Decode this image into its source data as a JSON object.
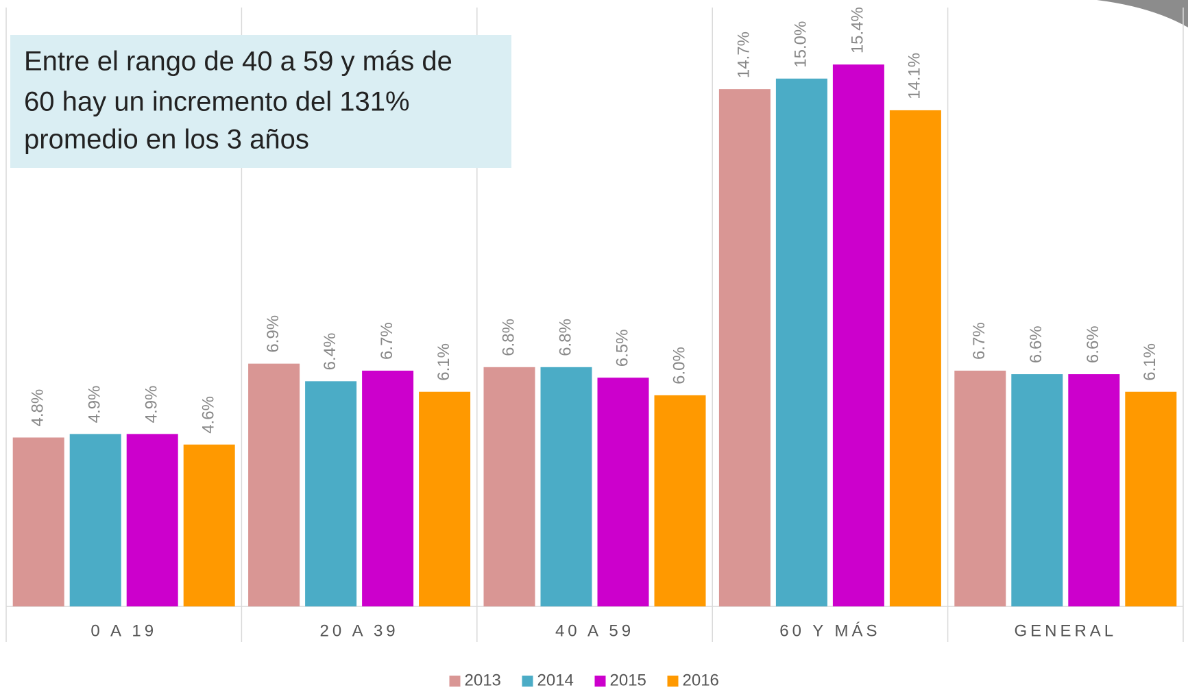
{
  "chart_data": {
    "type": "bar",
    "annotation": [
      "Entre el rango de 40 a 59 y más de",
      "60 hay un incremento del 131%",
      "promedio en los 3 años"
    ],
    "categories": [
      "0 A 19",
      "20 A 39",
      "40 A 59",
      "60 Y MÁS",
      "GENERAL"
    ],
    "series": [
      {
        "name": "2013",
        "color": "#d99694",
        "values": [
          4.8,
          6.9,
          6.8,
          14.7,
          6.7
        ],
        "value_labels": [
          "4.8%",
          "6.9%",
          "6.8%",
          "14.7%",
          "6.7%"
        ]
      },
      {
        "name": "2014",
        "color": "#4bacc6",
        "values": [
          4.9,
          6.4,
          6.8,
          15.0,
          6.6
        ],
        "value_labels": [
          "4.9%",
          "6.4%",
          "6.8%",
          "15.0%",
          "6.6%"
        ]
      },
      {
        "name": "2015",
        "color": "#cc00cc",
        "values": [
          4.9,
          6.7,
          6.5,
          15.4,
          6.6
        ],
        "value_labels": [
          "4.9%",
          "6.7%",
          "6.5%",
          "15.4%",
          "6.6%"
        ]
      },
      {
        "name": "2016",
        "color": "#ff9900",
        "values": [
          4.6,
          6.1,
          6.0,
          14.1,
          6.1
        ],
        "value_labels": [
          "4.6%",
          "6.1%",
          "6.0%",
          "14.1%",
          "6.1%"
        ]
      }
    ],
    "ylim": [
      0,
      17
    ],
    "legend": "bottom"
  }
}
